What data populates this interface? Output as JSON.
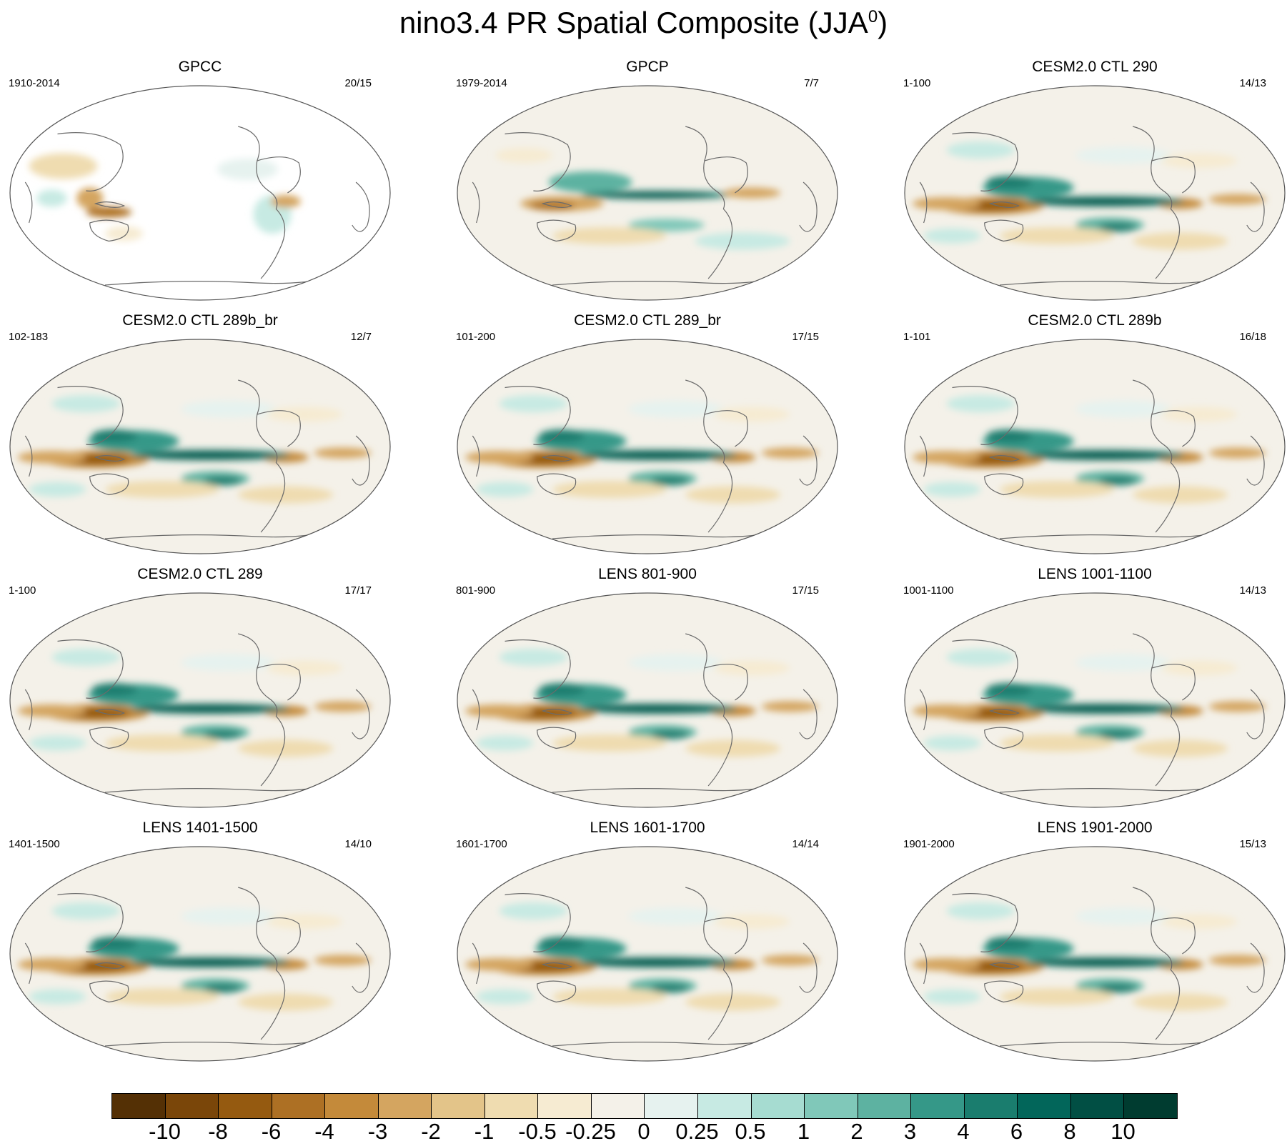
{
  "title": {
    "main": "nino3.4 PR Spatial Composite (JJA",
    "superscript": "0",
    "close": ")"
  },
  "panels": [
    {
      "title": "GPCC",
      "left_label": "1910-2014",
      "right_label": "20/15",
      "style": "obs-land"
    },
    {
      "title": "GPCP",
      "left_label": "1979-2014",
      "right_label": "7/7",
      "style": "obs"
    },
    {
      "title": "CESM2.0 CTL 290",
      "left_label": "1-100",
      "right_label": "14/13",
      "style": "model"
    },
    {
      "title": "CESM2.0 CTL 289b_br",
      "left_label": "102-183",
      "right_label": "12/7",
      "style": "model"
    },
    {
      "title": "CESM2.0 CTL 289_br",
      "left_label": "101-200",
      "right_label": "17/15",
      "style": "model"
    },
    {
      "title": "CESM2.0 CTL 289b",
      "left_label": "1-101",
      "right_label": "16/18",
      "style": "model"
    },
    {
      "title": "CESM2.0 CTL 289",
      "left_label": "1-100",
      "right_label": "17/17",
      "style": "model"
    },
    {
      "title": "LENS 801-900",
      "left_label": "801-900",
      "right_label": "17/15",
      "style": "model"
    },
    {
      "title": "LENS 1001-1100",
      "left_label": "1001-1100",
      "right_label": "14/13",
      "style": "model"
    },
    {
      "title": "LENS 1401-1500",
      "left_label": "1401-1500",
      "right_label": "14/10",
      "style": "model"
    },
    {
      "title": "LENS 1601-1700",
      "left_label": "1601-1700",
      "right_label": "14/14",
      "style": "model"
    },
    {
      "title": "LENS 1901-2000",
      "left_label": "1901-2000",
      "right_label": "15/13",
      "style": "model"
    }
  ],
  "colorbar": {
    "labels": [
      "-10",
      "-8",
      "-6",
      "-4",
      "-3",
      "-2",
      "-1",
      "-0.5",
      "-0.25",
      "0",
      "0.25",
      "0.5",
      "1",
      "2",
      "3",
      "4",
      "6",
      "8",
      "10"
    ],
    "colors": [
      "#543005",
      "#7a4609",
      "#955a10",
      "#ad7024",
      "#c48a3a",
      "#d4a560",
      "#e3c489",
      "#efdcb0",
      "#f6ebd2",
      "#f4f1e9",
      "#e6f2ef",
      "#c7eae3",
      "#a6dcd1",
      "#80c8b9",
      "#5db2a1",
      "#359888",
      "#1a7d6e",
      "#02665a",
      "#014f44",
      "#003c30"
    ]
  }
}
